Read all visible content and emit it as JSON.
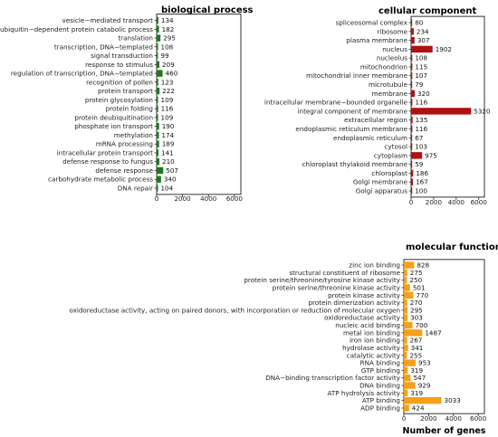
{
  "chart_data": [
    {
      "type": "bar",
      "orientation": "horizontal",
      "title": "biological  process",
      "color": "#1a7a1a",
      "xlim": [
        0,
        6500
      ],
      "xticks": [
        0,
        2000,
        4000,
        6000
      ],
      "xlabel": "",
      "categories": [
        "vesicle−mediated transport",
        "ubiquitin−dependent protein catabolic process",
        "translation",
        "transcription, DNA−templated",
        "signal transduction",
        "response to stimulus",
        "regulation of transcription, DNA−templated",
        "recognition of pollen",
        "protein transport",
        "protein glycosylation",
        "protein folding",
        "protein deubiquitination",
        "phosphate ion transport",
        "methylation",
        "mRNA processing",
        "intracellular protein transport",
        "defense response to fungus",
        "defense response",
        "carbohydrate metabolic process",
        "DNA repair"
      ],
      "values": [
        134,
        182,
        295,
        108,
        99,
        209,
        460,
        123,
        222,
        109,
        116,
        109,
        190,
        174,
        189,
        141,
        210,
        507,
        340,
        104
      ]
    },
    {
      "type": "bar",
      "orientation": "horizontal",
      "title": "cellular  component",
      "color": "#b01010",
      "xlim": [
        0,
        6500
      ],
      "xticks": [
        0,
        2000,
        4000,
        6000
      ],
      "xlabel": "",
      "categories": [
        "spliceosomal complex",
        "ribosome",
        "plasma membrane",
        "nucleus",
        "nucleolus",
        "mitochondrion",
        "mitochondrial inner membrane",
        "microtubule",
        "membrane",
        "intracellular membrane−bounded organelle",
        "integral component of membrane",
        "extracellular region",
        "endoplasmic reticulum membrane",
        "endoplasmic reticulum",
        "cytosol",
        "cytoplasm",
        "chloroplast thylakoid membrane",
        "chloroplast",
        "Golgi membrane",
        "Golgi apparatus"
      ],
      "values": [
        80,
        234,
        307,
        1902,
        108,
        115,
        107,
        79,
        320,
        116,
        5320,
        135,
        116,
        67,
        103,
        975,
        59,
        186,
        167,
        100
      ]
    },
    {
      "type": "bar",
      "orientation": "horizontal",
      "title": "molecular  function",
      "color": "#f5a01a",
      "xlim": [
        0,
        6500
      ],
      "xticks": [
        0,
        2000,
        4000,
        6000
      ],
      "xlabel": "Number of genes",
      "categories": [
        "zinc ion binding",
        "structural constituent of ribosome",
        "protein serine/threonine/tyrosine kinase activity",
        "protein serine/threonine kinase activity",
        "protein kinase activity",
        "protein dimerization activity",
        "oxidoreductase activity, acting on paired donors, with incorporation or reduction of molecular oxygen",
        "oxidoreductase activity",
        "nucleic acid binding",
        "metal ion binding",
        "iron ion binding",
        "hydrolase activity",
        "catalytic activity",
        "RNA binding",
        "GTP binding",
        "DNA−binding  transcription factor activity",
        "DNA binding",
        "ATP hydrolysis activity",
        "ATP binding",
        "ADP binding"
      ],
      "values": [
        828,
        275,
        250,
        501,
        770,
        270,
        295,
        303,
        700,
        1487,
        267,
        341,
        255,
        953,
        319,
        547,
        929,
        319,
        3033,
        424
      ]
    }
  ]
}
